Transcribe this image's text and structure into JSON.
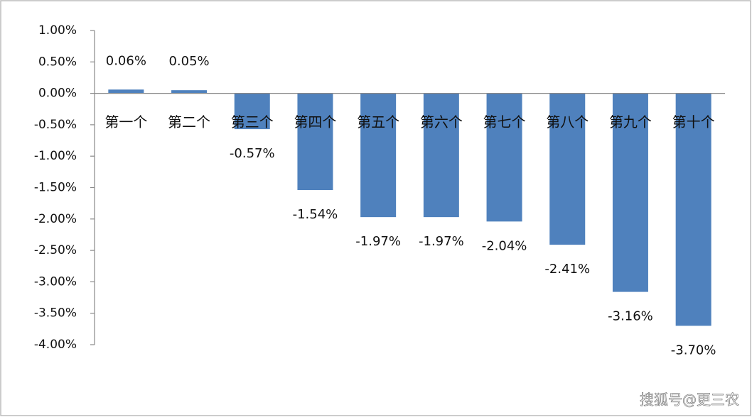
{
  "chart_data": {
    "type": "bar",
    "categories": [
      "第一个",
      "第二个",
      "第三个",
      "第四个",
      "第五个",
      "第六个",
      "第七个",
      "第八个",
      "第九个",
      "第十个"
    ],
    "values": [
      0.06,
      0.05,
      -0.57,
      -1.54,
      -1.97,
      -1.97,
      -2.04,
      -2.41,
      -3.16,
      -3.7
    ],
    "value_labels": [
      "0.06%",
      "0.05%",
      "-0.57%",
      "-1.54%",
      "-1.97%",
      "-1.97%",
      "-2.04%",
      "-2.41%",
      "-3.16%",
      "-3.70%"
    ],
    "color": "#4f81bd",
    "ylim": [
      -4,
      1
    ],
    "yticks": [
      {
        "value": 1,
        "label": "1.00%"
      },
      {
        "value": 0.5,
        "label": "0.50%"
      },
      {
        "value": 0,
        "label": "0.00%"
      },
      {
        "value": -0.5,
        "label": "-0.50%"
      },
      {
        "value": -1,
        "label": "-1.00%"
      },
      {
        "value": -1.5,
        "label": "-1.50%"
      },
      {
        "value": -2,
        "label": "-2.00%"
      },
      {
        "value": -2.5,
        "label": "-2.50%"
      },
      {
        "value": -3,
        "label": "-3.00%"
      },
      {
        "value": -3.5,
        "label": "-3.50%"
      },
      {
        "value": -4,
        "label": "-4.00%"
      }
    ],
    "watermark": "搜狐号@更三农"
  }
}
